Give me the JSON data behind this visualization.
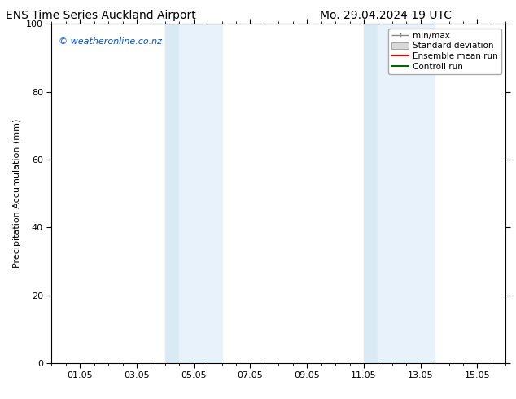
{
  "title_left": "ENS Time Series Auckland Airport",
  "title_right": "Mo. 29.04.2024 19 UTC",
  "ylabel": "Precipitation Accumulation (mm)",
  "ylim": [
    0,
    100
  ],
  "yticks": [
    0,
    20,
    40,
    60,
    80,
    100
  ],
  "xtick_labels": [
    "01.05",
    "03.05",
    "05.05",
    "07.05",
    "09.05",
    "11.05",
    "13.05",
    "15.05"
  ],
  "xtick_positions": [
    1.0,
    3.0,
    5.0,
    7.0,
    9.0,
    11.0,
    13.0,
    15.0
  ],
  "x_axis_start": 0.0,
  "x_axis_end": 16.0,
  "shaded_regions": [
    {
      "x_start": 4.0,
      "x_end": 4.5,
      "color": "#daeaf5"
    },
    {
      "x_start": 4.5,
      "x_end": 6.0,
      "color": "#e8f2fb"
    },
    {
      "x_start": 11.0,
      "x_end": 11.5,
      "color": "#daeaf5"
    },
    {
      "x_start": 11.5,
      "x_end": 13.5,
      "color": "#e8f2fb"
    }
  ],
  "watermark": "© weatheronline.co.nz",
  "watermark_color": "#0055cc",
  "legend_labels": [
    "min/max",
    "Standard deviation",
    "Ensemble mean run",
    "Controll run"
  ],
  "bg_color": "#ffffff",
  "title_fontsize": 10,
  "axis_label_fontsize": 8,
  "tick_fontsize": 8,
  "watermark_fontsize": 8,
  "legend_fontsize": 7.5
}
